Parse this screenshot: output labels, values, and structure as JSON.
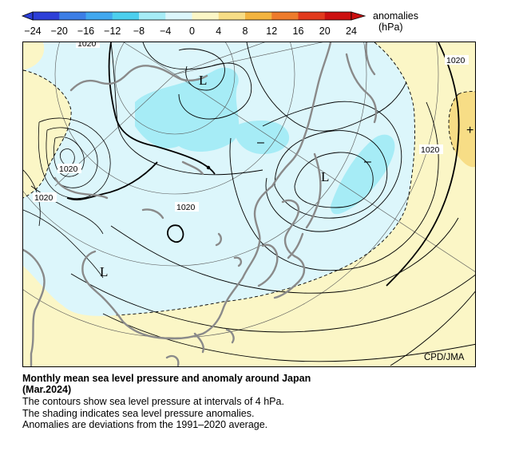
{
  "colorbar": {
    "ticks": [
      "−24",
      "−20",
      "−16",
      "−12",
      "−8",
      "−4",
      "0",
      "4",
      "8",
      "12",
      "16",
      "20",
      "24"
    ],
    "unit_line1": "anomalies",
    "unit_line2": "(hPa)",
    "colors": [
      "#2d3fd8",
      "#3c7ee6",
      "#41a8ef",
      "#4ccfee",
      "#a6ecf6",
      "#dcf6fb",
      "#fbf6c6",
      "#f7dd86",
      "#f3b43f",
      "#ee7b2b",
      "#e23a1d",
      "#cc1010"
    ]
  },
  "map": {
    "colors": {
      "sea": "#fbf6c6",
      "neg_anom": "#dcf6fb",
      "strong_neg": "#a6ecf6",
      "pos_anom": "#f7dd86",
      "coast": "#8a8a8a"
    },
    "pressure_labels": [
      "1020",
      "1020",
      "1020",
      "1020",
      "1020",
      "1020"
    ],
    "center_markers": [
      "L",
      "L",
      "L"
    ],
    "anomaly_markers": [
      "–",
      "–",
      "+"
    ],
    "credit": "CPD/JMA"
  },
  "caption": {
    "title_line1": "Monthly mean sea level pressure and anomaly around Japan",
    "title_line2": "(Mar.2024)",
    "line1": "The contours show sea level pressure at intervals of 4 hPa.",
    "line2": "The shading indicates sea level pressure anomalies.",
    "line3": "Anomalies are deviations from the 1991–2020 average."
  }
}
